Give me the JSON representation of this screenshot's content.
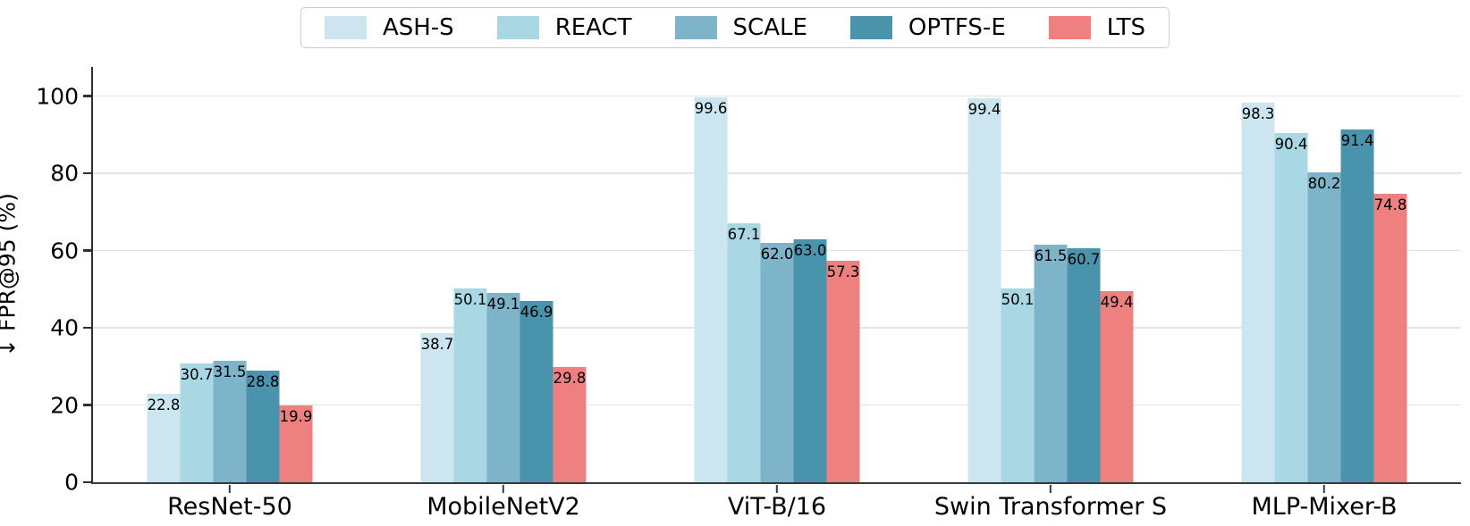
{
  "chart_data": {
    "type": "bar",
    "title": "",
    "xlabel": "",
    "ylabel": "↓ FPR@95 (%)",
    "categories": [
      "ResNet-50",
      "MobileNetV2",
      "ViT-B/16",
      "Swin Transformer S",
      "MLP-Mixer-B"
    ],
    "series": [
      {
        "name": "ASH-S",
        "color": "#cbe6f0",
        "values": [
          22.8,
          38.7,
          99.6,
          99.4,
          98.3
        ]
      },
      {
        "name": "REACT",
        "color": "#aad7e4",
        "values": [
          30.7,
          50.1,
          67.1,
          50.1,
          90.4
        ]
      },
      {
        "name": "SCALE",
        "color": "#7db4c9",
        "values": [
          31.5,
          49.1,
          62.0,
          61.5,
          80.2
        ]
      },
      {
        "name": "OPTFS-E",
        "color": "#4a93ad",
        "values": [
          28.8,
          46.9,
          63.0,
          60.7,
          91.4
        ]
      },
      {
        "name": "LTS",
        "color": "#ef8080",
        "values": [
          19.9,
          29.8,
          57.3,
          49.4,
          74.8
        ]
      }
    ],
    "yticks": [
      0,
      20,
      40,
      60,
      80,
      100
    ],
    "ylim": [
      0,
      108
    ],
    "grid": true,
    "legend_position": "top-center",
    "value_label_decimals": 1,
    "styles": {
      "gridline_color": "#e4e4e4",
      "spine_color": "#2e2e2e",
      "legend_border_color": "#cccccc",
      "text_color": "#000000",
      "background": "#ffffff"
    }
  }
}
